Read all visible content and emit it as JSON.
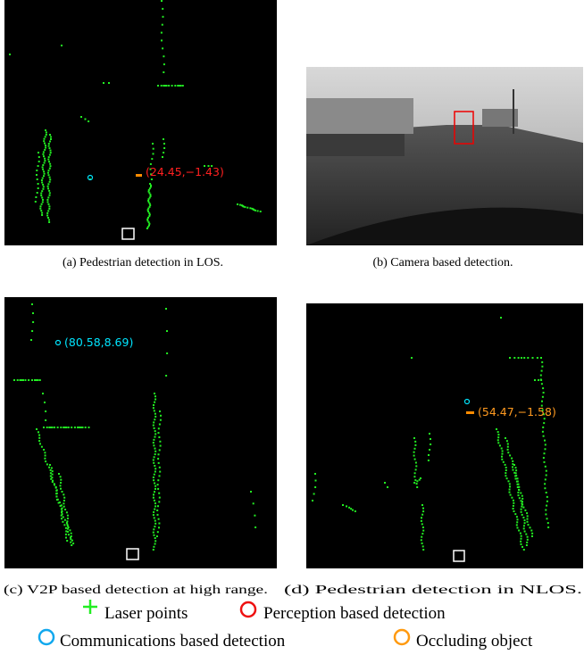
{
  "panels": [
    {
      "caption": "(a) Pedestrian detection in LOS.",
      "annotation": "(24.45,−1.43)"
    },
    {
      "caption": "(b) Camera based detection."
    },
    {
      "caption": "(c) V2P based detection at high range.",
      "annotation": "(80.58,8.69)"
    },
    {
      "caption": "(d) Pedestrian detection in NLOS.",
      "annotation": "(54.47,−1.58)"
    }
  ],
  "legend": [
    "Laser points",
    "Perception based detection",
    "Communications based detection",
    "Occluding object"
  ]
}
